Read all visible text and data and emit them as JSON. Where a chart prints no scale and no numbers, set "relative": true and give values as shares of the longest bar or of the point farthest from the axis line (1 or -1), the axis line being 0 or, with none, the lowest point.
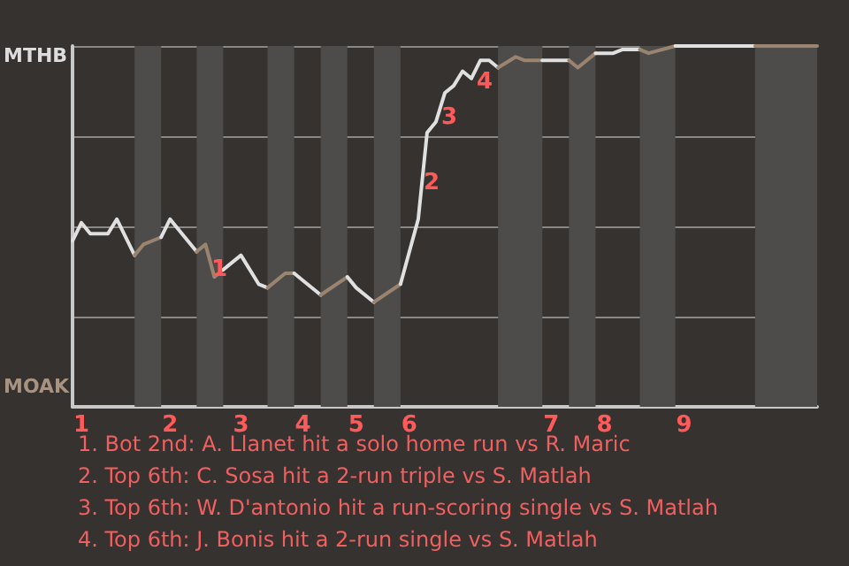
{
  "chart_data": {
    "type": "line",
    "relative": true,
    "categories": [
      null,
      "1",
      null,
      null,
      null,
      null,
      null,
      null,
      null,
      null,
      null,
      "2",
      null,
      null,
      null,
      null,
      null,
      null,
      null,
      "3",
      null,
      null,
      null,
      null,
      null,
      null,
      "4",
      null,
      null,
      null,
      null,
      null,
      "5",
      null,
      null,
      null,
      null,
      null,
      "6",
      null,
      null,
      null,
      null,
      null,
      null,
      null,
      null,
      null,
      null,
      null,
      null,
      null,
      null,
      null,
      "7",
      null,
      null,
      null,
      null,
      null,
      "8",
      null,
      null,
      null,
      null,
      null,
      null,
      null,
      null,
      "9",
      null,
      null,
      null,
      null,
      null,
      null,
      null,
      null,
      null,
      null,
      null,
      null,
      null,
      null,
      null
    ],
    "series": [
      {
        "color": "#e0e0e0",
        "values": [
          0.46,
          0.51,
          0.48,
          null,
          0.48,
          0.52,
          null,
          0.42,
          null,
          null,
          null,
          null,
          null,
          null,
          null,
          null,
          null,
          null,
          null,
          null,
          null,
          null,
          null,
          null,
          null,
          null,
          null,
          null,
          null,
          null,
          null,
          null,
          null,
          null,
          null,
          null,
          null,
          null,
          null,
          null,
          null,
          null,
          null,
          null,
          null,
          null,
          null,
          null,
          null,
          null,
          null,
          null,
          null,
          null,
          null,
          null,
          null,
          null,
          null,
          null,
          null,
          null,
          null,
          null,
          null,
          null,
          null,
          null,
          null,
          null,
          null,
          null,
          null,
          null,
          null,
          null,
          null,
          null,
          null,
          null,
          null,
          null,
          null,
          null,
          null
        ]
      },
      {
        "color": "#9a8470",
        "values": [
          null,
          null,
          null,
          null,
          null,
          null,
          null,
          0.42,
          0.45,
          null,
          0.47,
          null,
          null,
          null,
          null,
          null,
          null,
          null,
          null,
          null,
          null,
          null,
          null,
          null,
          null,
          null,
          null,
          null,
          null,
          null,
          null,
          null,
          null,
          null,
          null,
          null,
          null,
          null,
          null,
          null,
          null,
          null,
          null,
          null,
          null,
          null,
          null,
          null,
          null,
          null,
          null,
          null,
          null,
          null,
          null,
          null,
          null,
          null,
          null,
          null,
          null,
          null,
          null,
          null,
          null,
          null,
          null,
          null,
          null,
          null,
          null,
          null,
          null,
          null,
          null,
          null,
          null,
          null,
          null,
          null,
          null,
          null,
          null,
          null,
          null
        ]
      },
      {
        "color": "#e0e0e0",
        "values": [
          null,
          null,
          null,
          null,
          null,
          null,
          null,
          null,
          null,
          null,
          0.47,
          0.52,
          null,
          0.46,
          0.43,
          null,
          null,
          null,
          null,
          null,
          null,
          null,
          null,
          null,
          null,
          null,
          null,
          null,
          null,
          null,
          null,
          null,
          null,
          null,
          null,
          null,
          null,
          null,
          null,
          null,
          null,
          null,
          null,
          null,
          null,
          null,
          null,
          null,
          null,
          null,
          null,
          null,
          null,
          null,
          null,
          null,
          null,
          null,
          null,
          null,
          null,
          null,
          null,
          null,
          null,
          null,
          null,
          null,
          null,
          null,
          null,
          null,
          null,
          null,
          null,
          null,
          null,
          null,
          null,
          null,
          null,
          null,
          null,
          null,
          null
        ]
      },
      {
        "color": "#9a8470",
        "values": [
          null,
          null,
          null,
          null,
          null,
          null,
          null,
          null,
          null,
          null,
          null,
          null,
          null,
          null,
          0.43,
          0.45,
          0.36,
          0.38,
          null,
          null,
          null,
          null,
          null,
          null,
          null,
          null,
          null,
          null,
          null,
          null,
          null,
          null,
          null,
          null,
          null,
          null,
          null,
          null,
          null,
          null,
          null,
          null,
          null,
          null,
          null,
          null,
          null,
          null,
          null,
          null,
          null,
          null,
          null,
          null,
          null,
          null,
          null,
          null,
          null,
          null,
          null,
          null,
          null,
          null,
          null,
          null,
          null,
          null,
          null,
          null,
          null,
          null,
          null,
          null,
          null,
          null,
          null,
          null,
          null,
          null,
          null,
          null,
          null,
          null,
          null
        ]
      },
      {
        "color": "#e0e0e0",
        "values": [
          null,
          null,
          null,
          null,
          null,
          null,
          null,
          null,
          null,
          null,
          null,
          null,
          null,
          null,
          null,
          null,
          null,
          0.38,
          null,
          0.42,
          null,
          0.34,
          0.33,
          null,
          null,
          null,
          null,
          null,
          null,
          null,
          null,
          null,
          null,
          null,
          null,
          null,
          null,
          null,
          null,
          null,
          null,
          null,
          null,
          null,
          null,
          null,
          null,
          null,
          null,
          null,
          null,
          null,
          null,
          null,
          null,
          null,
          null,
          null,
          null,
          null,
          null,
          null,
          null,
          null,
          null,
          null,
          null,
          null,
          null,
          null,
          null,
          null,
          null,
          null,
          null,
          null,
          null,
          null,
          null,
          null,
          null,
          null,
          null,
          null,
          null
        ]
      },
      {
        "color": "#9a8470",
        "values": [
          null,
          null,
          null,
          null,
          null,
          null,
          null,
          null,
          null,
          null,
          null,
          null,
          null,
          null,
          null,
          null,
          null,
          null,
          null,
          null,
          null,
          null,
          0.33,
          null,
          0.37,
          0.37,
          null,
          null,
          null,
          null,
          null,
          null,
          null,
          null,
          null,
          null,
          null,
          null,
          null,
          null,
          null,
          null,
          null,
          null,
          null,
          null,
          null,
          null,
          null,
          null,
          null,
          null,
          null,
          null,
          null,
          null,
          null,
          null,
          null,
          null,
          null,
          null,
          null,
          null,
          null,
          null,
          null,
          null,
          null,
          null,
          null,
          null,
          null,
          null,
          null,
          null,
          null,
          null,
          null,
          null,
          null,
          null,
          null,
          null,
          null
        ]
      },
      {
        "color": "#e0e0e0",
        "values": [
          null,
          null,
          null,
          null,
          null,
          null,
          null,
          null,
          null,
          null,
          null,
          null,
          null,
          null,
          null,
          null,
          null,
          null,
          null,
          null,
          null,
          null,
          null,
          null,
          null,
          0.37,
          0.35,
          null,
          0.31,
          null,
          null,
          null,
          null,
          null,
          null,
          null,
          null,
          null,
          null,
          null,
          null,
          null,
          null,
          null,
          null,
          null,
          null,
          null,
          null,
          null,
          null,
          null,
          null,
          null,
          null,
          null,
          null,
          null,
          null,
          null,
          null,
          null,
          null,
          null,
          null,
          null,
          null,
          null,
          null,
          null,
          null,
          null,
          null,
          null,
          null,
          null,
          null,
          null,
          null,
          null,
          null,
          null,
          null,
          null,
          null
        ]
      },
      {
        "color": "#9a8470",
        "values": [
          null,
          null,
          null,
          null,
          null,
          null,
          null,
          null,
          null,
          null,
          null,
          null,
          null,
          null,
          null,
          null,
          null,
          null,
          null,
          null,
          null,
          null,
          null,
          null,
          null,
          null,
          null,
          null,
          0.31,
          null,
          null,
          0.36,
          null,
          null,
          null,
          null,
          null,
          null,
          null,
          null,
          null,
          null,
          null,
          null,
          null,
          null,
          null,
          null,
          null,
          null,
          null,
          null,
          null,
          null,
          null,
          null,
          null,
          null,
          null,
          null,
          null,
          null,
          null,
          null,
          null,
          null,
          null,
          null,
          null,
          null,
          null,
          null,
          null,
          null,
          null,
          null,
          null,
          null,
          null,
          null,
          null,
          null,
          null,
          null,
          null
        ]
      },
      {
        "color": "#e0e0e0",
        "values": [
          null,
          null,
          null,
          null,
          null,
          null,
          null,
          null,
          null,
          null,
          null,
          null,
          null,
          null,
          null,
          null,
          null,
          null,
          null,
          null,
          null,
          null,
          null,
          null,
          null,
          null,
          null,
          null,
          null,
          null,
          null,
          0.36,
          0.33,
          null,
          0.29,
          null,
          null,
          null,
          null,
          null,
          null,
          null,
          null,
          null,
          null,
          null,
          null,
          null,
          null,
          null,
          null,
          null,
          null,
          null,
          null,
          null,
          null,
          null,
          null,
          null,
          null,
          null,
          null,
          null,
          null,
          null,
          null,
          null,
          null,
          null,
          null,
          null,
          null,
          null,
          null,
          null,
          null,
          null,
          null,
          null,
          null,
          null,
          null,
          null,
          null
        ]
      },
      {
        "color": "#9a8470",
        "values": [
          null,
          null,
          null,
          null,
          null,
          null,
          null,
          null,
          null,
          null,
          null,
          null,
          null,
          null,
          null,
          null,
          null,
          null,
          null,
          null,
          null,
          null,
          null,
          null,
          null,
          null,
          null,
          null,
          null,
          null,
          null,
          null,
          null,
          null,
          0.29,
          null,
          null,
          0.34,
          null,
          null,
          null,
          null,
          null,
          null,
          null,
          null,
          null,
          null,
          null,
          null,
          null,
          null,
          null,
          null,
          null,
          null,
          null,
          null,
          null,
          null,
          null,
          null,
          null,
          null,
          null,
          null,
          null,
          null,
          null,
          null,
          null,
          null,
          null,
          null,
          null,
          null,
          null,
          null,
          null,
          null,
          null,
          null,
          null,
          null,
          null
        ]
      },
      {
        "color": "#e0e0e0",
        "values": [
          null,
          null,
          null,
          null,
          null,
          null,
          null,
          null,
          null,
          null,
          null,
          null,
          null,
          null,
          null,
          null,
          null,
          null,
          null,
          null,
          null,
          null,
          null,
          null,
          null,
          null,
          null,
          null,
          null,
          null,
          null,
          null,
          null,
          null,
          null,
          null,
          null,
          0.34,
          0.43,
          0.52,
          0.76,
          0.79,
          0.87,
          0.89,
          0.93,
          0.91,
          0.96,
          0.96,
          0.94,
          null,
          null,
          null,
          null,
          null,
          null,
          null,
          null,
          null,
          null,
          null,
          null,
          null,
          null,
          null,
          null,
          null,
          null,
          null,
          null,
          null,
          null,
          null,
          null,
          null,
          null,
          null,
          null,
          null,
          null,
          null,
          null,
          null,
          null,
          null,
          null
        ]
      },
      {
        "color": "#9a8470",
        "values": [
          null,
          null,
          null,
          null,
          null,
          null,
          null,
          null,
          null,
          null,
          null,
          null,
          null,
          null,
          null,
          null,
          null,
          null,
          null,
          null,
          null,
          null,
          null,
          null,
          null,
          null,
          null,
          null,
          null,
          null,
          null,
          null,
          null,
          null,
          null,
          null,
          null,
          null,
          null,
          null,
          null,
          null,
          null,
          null,
          null,
          null,
          null,
          null,
          0.94,
          null,
          0.97,
          0.96,
          null,
          0.96,
          null,
          null,
          null,
          null,
          null,
          null,
          null,
          null,
          null,
          null,
          null,
          null,
          null,
          null,
          null,
          null,
          null,
          null,
          null,
          null,
          null,
          null,
          null,
          null,
          null,
          null,
          null,
          null,
          null,
          null,
          null
        ]
      },
      {
        "color": "#e0e0e0",
        "values": [
          null,
          null,
          null,
          null,
          null,
          null,
          null,
          null,
          null,
          null,
          null,
          null,
          null,
          null,
          null,
          null,
          null,
          null,
          null,
          null,
          null,
          null,
          null,
          null,
          null,
          null,
          null,
          null,
          null,
          null,
          null,
          null,
          null,
          null,
          null,
          null,
          null,
          null,
          null,
          null,
          null,
          null,
          null,
          null,
          null,
          null,
          null,
          null,
          null,
          null,
          null,
          null,
          null,
          0.96,
          null,
          0.96,
          0.96,
          null,
          null,
          null,
          null,
          null,
          null,
          null,
          null,
          null,
          null,
          null,
          null,
          null,
          null,
          null,
          null,
          null,
          null,
          null,
          null,
          null,
          null,
          null,
          null,
          null,
          null,
          null,
          null
        ]
      },
      {
        "color": "#9a8470",
        "values": [
          null,
          null,
          null,
          null,
          null,
          null,
          null,
          null,
          null,
          null,
          null,
          null,
          null,
          null,
          null,
          null,
          null,
          null,
          null,
          null,
          null,
          null,
          null,
          null,
          null,
          null,
          null,
          null,
          null,
          null,
          null,
          null,
          null,
          null,
          null,
          null,
          null,
          null,
          null,
          null,
          null,
          null,
          null,
          null,
          null,
          null,
          null,
          null,
          null,
          null,
          null,
          null,
          null,
          null,
          null,
          null,
          0.96,
          0.94,
          null,
          0.98,
          null,
          null,
          null,
          null,
          null,
          null,
          null,
          null,
          null,
          null,
          null,
          null,
          null,
          null,
          null,
          null,
          null,
          null,
          null,
          null,
          null,
          null,
          null,
          null,
          null
        ]
      },
      {
        "color": "#e0e0e0",
        "values": [
          null,
          null,
          null,
          null,
          null,
          null,
          null,
          null,
          null,
          null,
          null,
          null,
          null,
          null,
          null,
          null,
          null,
          null,
          null,
          null,
          null,
          null,
          null,
          null,
          null,
          null,
          null,
          null,
          null,
          null,
          null,
          null,
          null,
          null,
          null,
          null,
          null,
          null,
          null,
          null,
          null,
          null,
          null,
          null,
          null,
          null,
          null,
          null,
          null,
          null,
          null,
          null,
          null,
          null,
          null,
          null,
          null,
          null,
          null,
          0.98,
          null,
          0.98,
          0.99,
          null,
          0.99,
          null,
          null,
          null,
          null,
          null,
          null,
          null,
          null,
          null,
          null,
          null,
          null,
          null,
          null,
          null,
          null,
          null,
          null,
          null,
          null
        ]
      },
      {
        "color": "#9a8470",
        "values": [
          null,
          null,
          null,
          null,
          null,
          null,
          null,
          null,
          null,
          null,
          null,
          null,
          null,
          null,
          null,
          null,
          null,
          null,
          null,
          null,
          null,
          null,
          null,
          null,
          null,
          null,
          null,
          null,
          null,
          null,
          null,
          null,
          null,
          null,
          null,
          null,
          null,
          null,
          null,
          null,
          null,
          null,
          null,
          null,
          null,
          null,
          null,
          null,
          null,
          null,
          null,
          null,
          null,
          null,
          null,
          null,
          null,
          null,
          null,
          null,
          null,
          null,
          null,
          null,
          0.99,
          0.98,
          null,
          null,
          1,
          null,
          null,
          null,
          null,
          null,
          null,
          null,
          null,
          null,
          null,
          null,
          null,
          null,
          null,
          null,
          null
        ]
      },
      {
        "color": "#e0e0e0",
        "values": [
          null,
          null,
          null,
          null,
          null,
          null,
          null,
          null,
          null,
          null,
          null,
          null,
          null,
          null,
          null,
          null,
          null,
          null,
          null,
          null,
          null,
          null,
          null,
          null,
          null,
          null,
          null,
          null,
          null,
          null,
          null,
          null,
          null,
          null,
          null,
          null,
          null,
          null,
          null,
          null,
          null,
          null,
          null,
          null,
          null,
          null,
          null,
          null,
          null,
          null,
          null,
          null,
          null,
          null,
          null,
          null,
          null,
          null,
          null,
          null,
          null,
          null,
          null,
          null,
          null,
          null,
          null,
          null,
          1,
          null,
          null,
          null,
          null,
          null,
          null,
          null,
          null,
          1,
          null,
          null,
          null,
          null,
          null,
          null,
          null
        ]
      },
      {
        "color": "#9a8470",
        "values": [
          null,
          null,
          null,
          null,
          null,
          null,
          null,
          null,
          null,
          null,
          null,
          null,
          null,
          null,
          null,
          null,
          null,
          null,
          null,
          null,
          null,
          null,
          null,
          null,
          null,
          null,
          null,
          null,
          null,
          null,
          null,
          null,
          null,
          null,
          null,
          null,
          null,
          null,
          null,
          null,
          null,
          null,
          null,
          null,
          null,
          null,
          null,
          null,
          null,
          null,
          null,
          null,
          null,
          null,
          null,
          null,
          null,
          null,
          null,
          null,
          null,
          null,
          null,
          null,
          null,
          null,
          null,
          null,
          null,
          null,
          null,
          null,
          null,
          null,
          null,
          null,
          null,
          1,
          null,
          null,
          null,
          null,
          null,
          null,
          1
        ]
      }
    ],
    "grid": "y",
    "annotations": [
      "MTHB",
      "MOAK",
      "1",
      "2",
      "3",
      "4",
      "1. Bot 2nd: A. Llanet hit a solo home run vs R. Maric",
      "2. Top 6th: C. Sosa hit a 2-run triple vs S. Matlah",
      "3. Top 6th: W. D'antonio hit a run-scoring single vs S. Matlah",
      "4. Top 6th: J. Bonis hit a 2-run single vs S. Matlah"
    ],
    "marker": "none"
  }
}
